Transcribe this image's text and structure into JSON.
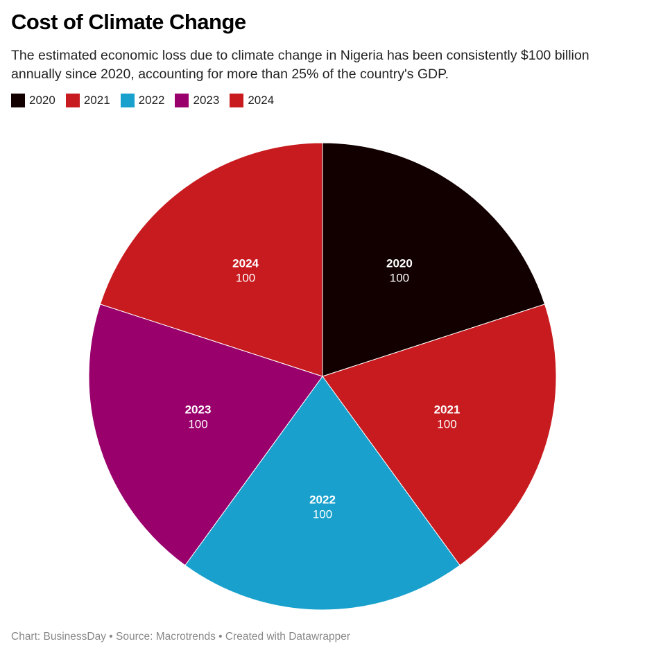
{
  "header": {
    "title": "Cost of Climate Change",
    "subtitle": "The estimated economic loss due to climate change in Nigeria has been consistently $100 billion annually since 2020, accounting for more than 25% of the country's GDP."
  },
  "footer": {
    "text": "Chart: BusinessDay • Source: Macrotrends • Created with Datawrapper"
  },
  "chart_data": {
    "type": "pie",
    "title": "Cost of Climate Change",
    "legend_position": "top-left",
    "categories": [
      "2020",
      "2021",
      "2022",
      "2023",
      "2024"
    ],
    "values": [
      100,
      100,
      100,
      100,
      100
    ],
    "value_labels": [
      "100",
      "100",
      "100",
      "100",
      "100"
    ],
    "colors": [
      "#120000",
      "#c81b1f",
      "#19a0cc",
      "#9a006c",
      "#c81b1f"
    ]
  }
}
